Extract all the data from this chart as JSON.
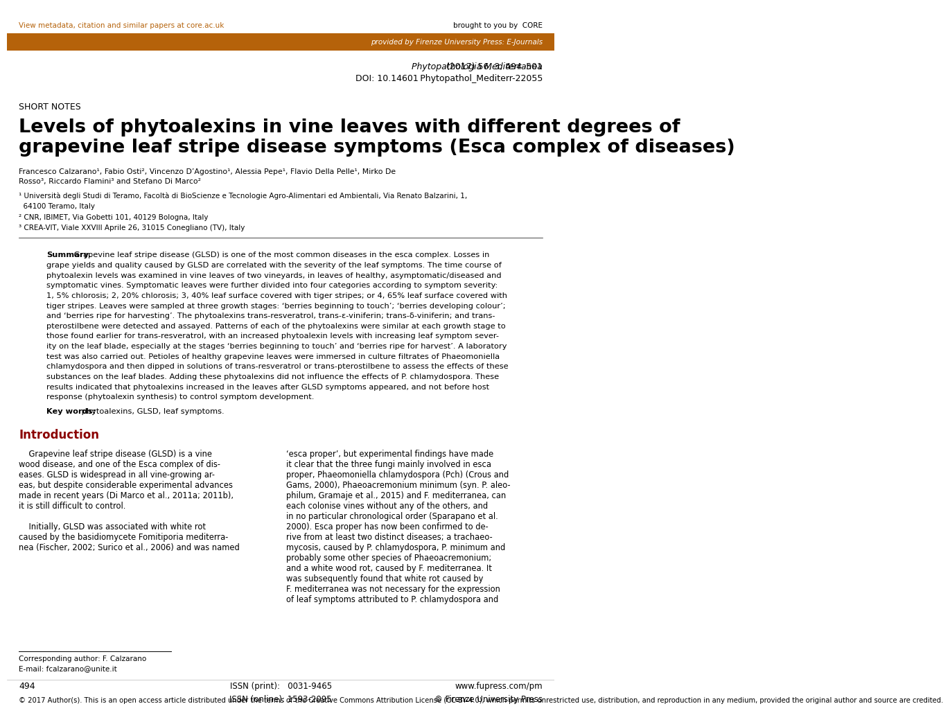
{
  "bg_color": "#ffffff",
  "header_bar_color": "#b5620a",
  "top_link_text": "View metadata, citation and similar papers at core.ac.uk",
  "top_link_color": "#b5620a",
  "provided_text": "provided by Firenze University Press: E-Journals",
  "provided_text_color": "#ffffff",
  "journal_line1_italic": "Phytopathologia Mediterranea",
  "journal_line1_normal": " (2017) 56, 3, 494–501",
  "journal_line2": "DOI: 10.14601 Phytopathol_Mediterr-22055",
  "section_label": "SHORT NOTES",
  "title_line1": "Levels of phytoalexins in vine leaves with different degrees of",
  "title_line2": "grapevine leaf stripe disease symptoms (Esca complex of diseases)",
  "author_line1": "Francesco Calzarano¹, Fabio Osti², Vincenzo D’Agostino¹, Alessia Pepe¹, Flavio Della Pelle¹, Mirko De",
  "author_line2": "Rosso³, Riccardo Flamini³ and Stefano Di Marco²",
  "affiliations": [
    "¹ Università degli Studi di Teramo, Facoltà di BioScienze e Tecnologie Agro-Alimentari ed Ambientali, Via Renato Balzarini, 1,",
    "  64100 Teramo, Italy",
    "² CNR, IBIMET, Via Gobetti 101, 40129 Bologna, Italy",
    "³ CREA-VIT, Viale XXVIII Aprile 26, 31015 Conegliano (TV), Italy"
  ],
  "summary_bold": "Summary.",
  "summary_lines": [
    " Grapevine leaf stripe disease (GLSD) is one of the most common diseases in the esca complex. Losses in",
    "grape yields and quality caused by GLSD are correlated with the severity of the leaf symptoms. The time course of",
    "phytoalexin levels was examined in vine leaves of two vineyards, in leaves of healthy, asymptomatic/diseased and",
    "symptomatic vines. Symptomatic leaves were further divided into four categories according to symptom severity:",
    "1, 5% chlorosis; 2, 20% chlorosis; 3, 40% leaf surface covered with tiger stripes; or 4, 65% leaf surface covered with",
    "tiger stripes. Leaves were sampled at three growth stages: ‘berries beginning to touch’; ‘berries developing colour’;",
    "and ‘berries ripe for harvesting’. The phytoalexins trans-resveratrol, trans-ε-viniferin; trans-δ-viniferin; and trans-",
    "pterostilbene were detected and assayed. Patterns of each of the phytoalexins were similar at each growth stage to",
    "those found earlier for trans-resveratrol, with an increased phytoalexin levels with increasing leaf symptom sever-",
    "ity on the leaf blade, especially at the stages ‘berries beginning to touch’ and ‘berries ripe for harvest’. A laboratory",
    "test was also carried out. Petioles of healthy grapevine leaves were immersed in culture filtrates of Phaeomoniella",
    "chlamydospora and then dipped in solutions of trans-resveratrol or trans-pterostilbene to assess the effects of these",
    "substances on the leaf blades. Adding these phytoalexins did not influence the effects of P. chlamydospora. These",
    "results indicated that phytoalexins increased in the leaves after GLSD symptoms appeared, and not before host",
    "response (phytoalexin synthesis) to control symptom development."
  ],
  "keywords_bold": "Key words:",
  "keywords_text": " phytoalexins, GLSD, leaf symptoms.",
  "intro_title": "Introduction",
  "intro_title_color": "#8B0000",
  "intro_col1_lines": [
    "    Grapevine leaf stripe disease (GLSD) is a vine",
    "wood disease, and one of the Esca complex of dis-",
    "eases. GLSD is widespread in all vine-growing ar-",
    "eas, but despite considerable experimental advances",
    "made in recent years (Di Marco et al., 2011a; 2011b),",
    "it is still difficult to control.",
    "",
    "    Initially, GLSD was associated with white rot",
    "caused by the basidiomycete Fomitiporia mediterra-",
    "nea (Fischer, 2002; Surico et al., 2006) and was named"
  ],
  "intro_col2_lines": [
    "‘esca proper’, but experimental findings have made",
    "it clear that the three fungi mainly involved in esca",
    "proper, Phaeomoniella chlamydospora (Pch) (Crous and",
    "Gams, 2000), Phaeoacremonium minimum (syn. P. aleo-",
    "philum, Gramaje et al., 2015) and F. mediterranea, can",
    "each colonise vines without any of the others, and",
    "in no particular chronological order (Sparapano et al.",
    "2000). Esca proper has now been confirmed to de-",
    "rive from at least two distinct diseases; a trachaeo-",
    "mycosis, caused by P. chlamydospora, P. minimum and",
    "probably some other species of Phaeoacremonium;",
    "and a white wood rot, caused by F. mediterranea. It",
    "was subsequently found that white rot caused by",
    "F. mediterranea was not necessary for the expression",
    "of leaf symptoms attributed to P. chlamydospora and"
  ],
  "footer_author1": "Corresponding author: F. Calzarano",
  "footer_author2": "E-mail: fcalzarano@unite.it",
  "footer_page": "494",
  "footer_issn_lines": "ISSN (print):   0031-9465\nISSN (online): 1593-2095",
  "footer_right": "www.fupress.com/pm\n© Firenze University Press",
  "footer_cc": "© 2017 Author(s). This is an open access article distributed under the terms of the Creative Commons Attribution License (CC-BY-4.0), which permits unrestricted use, distribution, and reproduction in any medium, provided the original author and source are credited."
}
